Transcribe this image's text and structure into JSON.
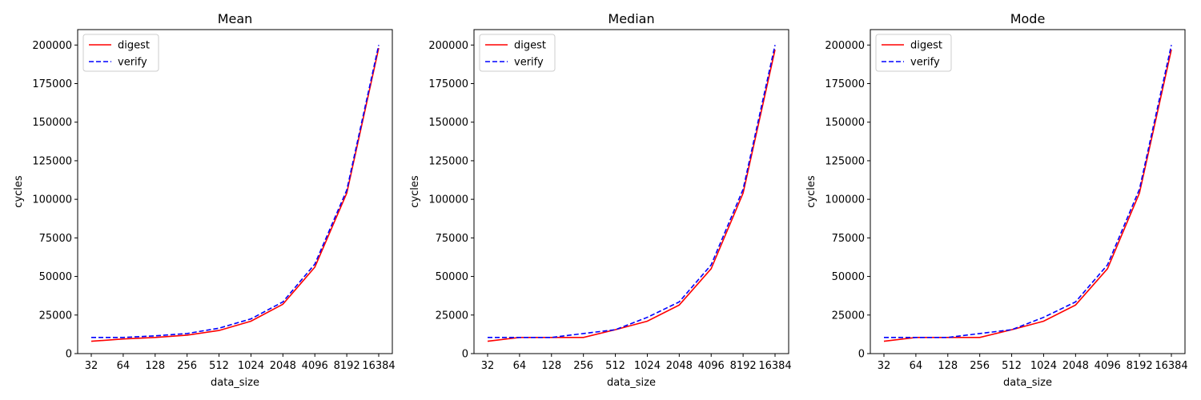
{
  "chart_data": [
    {
      "type": "line",
      "title": "Mean",
      "xlabel": "data_size",
      "ylabel": "cycles",
      "categories": [
        "32",
        "64",
        "128",
        "256",
        "512",
        "1024",
        "2048",
        "4096",
        "8192",
        "16384"
      ],
      "ylim": [
        0,
        210000
      ],
      "yticks": [
        0,
        25000,
        50000,
        75000,
        100000,
        125000,
        150000,
        175000,
        200000
      ],
      "legend": "upper-left",
      "series": [
        {
          "name": "digest",
          "color": "#ff0000",
          "dash": "solid",
          "values": [
            8000,
            9500,
            10500,
            12000,
            15000,
            21000,
            32000,
            56000,
            104000,
            198000
          ]
        },
        {
          "name": "verify",
          "color": "#0000ff",
          "dash": "dashed",
          "values": [
            10500,
            10500,
            11500,
            13000,
            16500,
            22500,
            33500,
            58000,
            106000,
            200000
          ]
        }
      ]
    },
    {
      "type": "line",
      "title": "Median",
      "xlabel": "data_size",
      "ylabel": "cycles",
      "categories": [
        "32",
        "64",
        "128",
        "256",
        "512",
        "1024",
        "2048",
        "4096",
        "8192",
        "16384"
      ],
      "ylim": [
        0,
        210000
      ],
      "yticks": [
        0,
        25000,
        50000,
        75000,
        100000,
        125000,
        150000,
        175000,
        200000
      ],
      "legend": "upper-left",
      "series": [
        {
          "name": "digest",
          "color": "#ff0000",
          "dash": "solid",
          "values": [
            8000,
            10500,
            10500,
            10500,
            15500,
            21000,
            31500,
            55000,
            104000,
            197000
          ]
        },
        {
          "name": "verify",
          "color": "#0000ff",
          "dash": "dashed",
          "values": [
            10500,
            10500,
            10500,
            13000,
            15500,
            23500,
            33500,
            57500,
            106500,
            200000
          ]
        }
      ]
    },
    {
      "type": "line",
      "title": "Mode",
      "xlabel": "data_size",
      "ylabel": "cycles",
      "categories": [
        "32",
        "64",
        "128",
        "256",
        "512",
        "1024",
        "2048",
        "4096",
        "8192",
        "16384"
      ],
      "ylim": [
        0,
        210000
      ],
      "yticks": [
        0,
        25000,
        50000,
        75000,
        100000,
        125000,
        150000,
        175000,
        200000
      ],
      "legend": "upper-left",
      "series": [
        {
          "name": "digest",
          "color": "#ff0000",
          "dash": "solid",
          "values": [
            8000,
            10500,
            10500,
            10500,
            15500,
            21000,
            31500,
            55000,
            104000,
            197000
          ]
        },
        {
          "name": "verify",
          "color": "#0000ff",
          "dash": "dashed",
          "values": [
            10500,
            10500,
            10500,
            13000,
            15500,
            23500,
            33500,
            57500,
            106500,
            200000
          ]
        }
      ]
    }
  ]
}
